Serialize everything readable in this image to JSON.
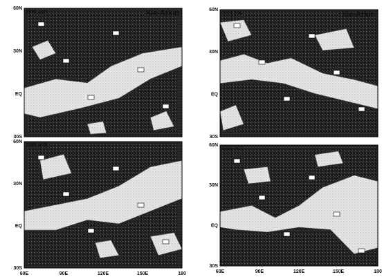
{
  "panels": [
    {
      "title": "1998 JAN",
      "source": "Xie-Arkin",
      "y_labels": [
        "60N",
        "30N",
        "EQ",
        "30S"
      ],
      "x_labels": []
    },
    {
      "title": "1998 JUL",
      "source": "Xie-Arkin",
      "y_labels": [
        "60N",
        "30N",
        "EQ",
        "30S"
      ],
      "x_labels": []
    },
    {
      "title": "1998 APR",
      "y_labels": [
        "60N",
        "30N",
        "EQ",
        "30S"
      ],
      "x_labels": [
        "60E",
        "90E",
        "120E",
        "150E",
        "180"
      ]
    },
    {
      "title": "1998 OCT",
      "y_labels": [
        "60N",
        "30N",
        "EQ",
        "30S"
      ],
      "x_labels": [
        "60E",
        "90E",
        "120E",
        "150E",
        "180"
      ]
    }
  ]
}
